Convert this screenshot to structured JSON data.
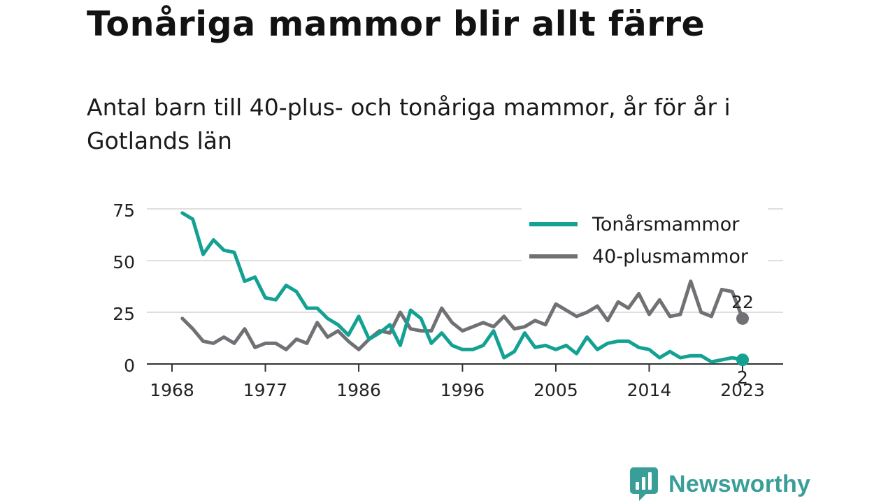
{
  "title": "Tonåriga mammor blir allt färre",
  "subtitle": "Antal barn till 40-plus- och tonåriga mammor, år för år i Gotlands län",
  "brand": {
    "name": "Newsworthy",
    "color": "#3a9e98",
    "icon": "bar-chart-speech-bubble-icon"
  },
  "colors": {
    "teen": "#13a193",
    "forty": "#707075",
    "grid": "#dedede",
    "axis": "#333333"
  },
  "chart_data": {
    "type": "line",
    "ylim": [
      0,
      75
    ],
    "yticks": [
      0,
      25,
      50,
      75
    ],
    "xticks": [
      1968,
      1977,
      1986,
      1996,
      2005,
      2014,
      2023
    ],
    "grid": true,
    "legend_position": "top-right",
    "x": [
      1969,
      1970,
      1971,
      1972,
      1973,
      1974,
      1975,
      1976,
      1977,
      1978,
      1979,
      1980,
      1981,
      1982,
      1983,
      1984,
      1985,
      1986,
      1987,
      1988,
      1989,
      1990,
      1991,
      1992,
      1993,
      1994,
      1995,
      1996,
      1997,
      1998,
      1999,
      2000,
      2001,
      2002,
      2003,
      2004,
      2005,
      2006,
      2007,
      2008,
      2009,
      2010,
      2011,
      2012,
      2013,
      2014,
      2015,
      2016,
      2017,
      2018,
      2019,
      2020,
      2021,
      2022,
      2023
    ],
    "series": [
      {
        "name": "Tonårsmammor",
        "color": "#13a193",
        "values": [
          73,
          70,
          53,
          60,
          55,
          54,
          40,
          42,
          32,
          31,
          38,
          35,
          27,
          27,
          22,
          19,
          14,
          23,
          12,
          15,
          19,
          9,
          26,
          22,
          10,
          15,
          9,
          7,
          7,
          9,
          16,
          3,
          6,
          15,
          8,
          9,
          7,
          9,
          5,
          13,
          7,
          10,
          11,
          11,
          8,
          7,
          3,
          6,
          3,
          4,
          4,
          1,
          2,
          3,
          2
        ],
        "end_label": "2"
      },
      {
        "name": "40-plusmammor",
        "color": "#707075",
        "values": [
          22,
          17,
          11,
          10,
          13,
          10,
          17,
          8,
          10,
          10,
          7,
          12,
          10,
          20,
          13,
          16,
          11,
          7,
          12,
          16,
          15,
          25,
          17,
          16,
          16,
          27,
          20,
          16,
          18,
          20,
          18,
          23,
          17,
          18,
          21,
          19,
          29,
          26,
          23,
          25,
          28,
          21,
          30,
          27,
          34,
          24,
          31,
          23,
          24,
          40,
          25,
          23,
          36,
          35,
          22
        ],
        "end_label": "22"
      }
    ]
  }
}
